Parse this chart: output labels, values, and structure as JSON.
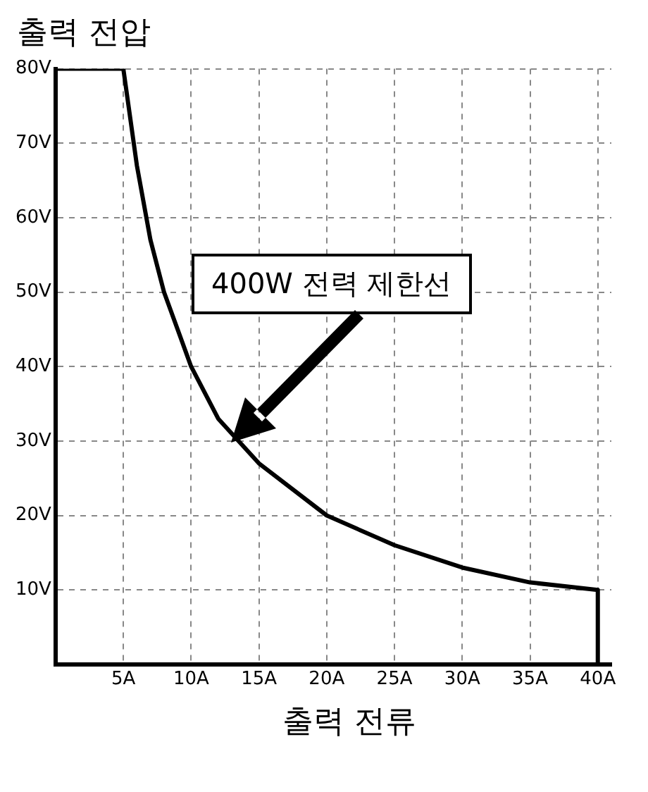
{
  "chart_data": {
    "type": "line",
    "xlabel": "출력 전류",
    "ylabel": "출력 전압",
    "x": [
      0,
      0,
      5,
      6,
      7,
      8,
      10,
      12,
      15,
      20,
      25,
      30,
      35,
      40,
      40
    ],
    "series": [
      {
        "color": "#000000",
        "values": [
          0,
          80,
          80,
          67,
          57,
          50,
          40,
          33,
          27,
          20,
          16,
          13,
          11,
          10,
          0
        ]
      }
    ],
    "xlim": [
      0,
      41
    ],
    "xticks": [
      {
        "value": 5,
        "label": "5A"
      },
      {
        "value": 10,
        "label": "10A"
      },
      {
        "value": 15,
        "label": "15A"
      },
      {
        "value": 20,
        "label": "20A"
      },
      {
        "value": 25,
        "label": "25A"
      },
      {
        "value": 30,
        "label": "30A"
      },
      {
        "value": 35,
        "label": "35A"
      },
      {
        "value": 40,
        "label": "40A"
      }
    ],
    "ylim": [
      0,
      80
    ],
    "yticks": [
      {
        "value": 10,
        "label": "10V"
      },
      {
        "value": 20,
        "label": "20V"
      },
      {
        "value": 30,
        "label": "30V"
      },
      {
        "value": 40,
        "label": "40V"
      },
      {
        "value": 50,
        "label": "50V"
      },
      {
        "value": 60,
        "label": "60V"
      },
      {
        "value": 70,
        "label": "70V"
      },
      {
        "value": 80,
        "label": "80V"
      }
    ],
    "grid": true,
    "legend": false,
    "marker": "none",
    "line_style": "solid",
    "annotations": [
      "400W 전력 제한선"
    ]
  }
}
